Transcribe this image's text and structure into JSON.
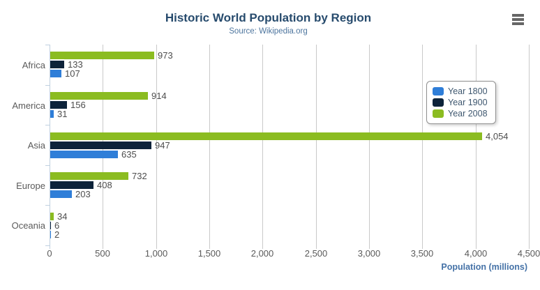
{
  "header": {
    "menu_icon": "hamburger-icon"
  },
  "colors": {
    "title": "#274b6d",
    "subtitle": "#4d759e",
    "axis_title": "#4572a7",
    "axis_labels": "#5a5a5a",
    "data_labels": "#4d4d4d",
    "gridline": "#c9c9c9",
    "category_axis_line": "#c0d0e0",
    "legend_border": "#909090",
    "menu_icon": "#666666"
  },
  "chart_data": {
    "type": "bar",
    "orientation": "horizontal",
    "title": "Historic World Population by Region",
    "subtitle": "Source: Wikipedia.org",
    "categories": [
      "Africa",
      "America",
      "Asia",
      "Europe",
      "Oceania"
    ],
    "series": [
      {
        "name": "Year 1800",
        "color": "#2f7ed8",
        "values": [
          107,
          31,
          635,
          203,
          2
        ]
      },
      {
        "name": "Year 1900",
        "color": "#0d233a",
        "values": [
          133,
          156,
          947,
          408,
          6
        ]
      },
      {
        "name": "Year 2008",
        "color": "#8bbc21",
        "values": [
          973,
          914,
          4054,
          732,
          34
        ]
      }
    ],
    "bar_display_order_top_to_bottom": [
      "Year 2008",
      "Year 1900",
      "Year 1800"
    ],
    "data_labels": {
      "Africa": [
        "107",
        "133",
        "973"
      ],
      "America": [
        "31",
        "156",
        "914"
      ],
      "Asia": [
        "635",
        "947",
        "4,054"
      ],
      "Europe": [
        "203",
        "408",
        "732"
      ],
      "Oceania": [
        "2",
        "6",
        "34"
      ]
    },
    "xlabel": "Population (millions)",
    "ylabel": "",
    "xlim": [
      0,
      4500
    ],
    "x_ticks": [
      0,
      500,
      1000,
      1500,
      2000,
      2500,
      3000,
      3500,
      4000,
      4500
    ],
    "x_tick_labels": [
      "0",
      "500",
      "1,000",
      "1,500",
      "2,000",
      "2,500",
      "3,000",
      "3,500",
      "4,000",
      "4,500"
    ],
    "grid": true,
    "legend_position": "right-inside",
    "legend_entries": [
      "Year 1800",
      "Year 1900",
      "Year 2008"
    ]
  }
}
